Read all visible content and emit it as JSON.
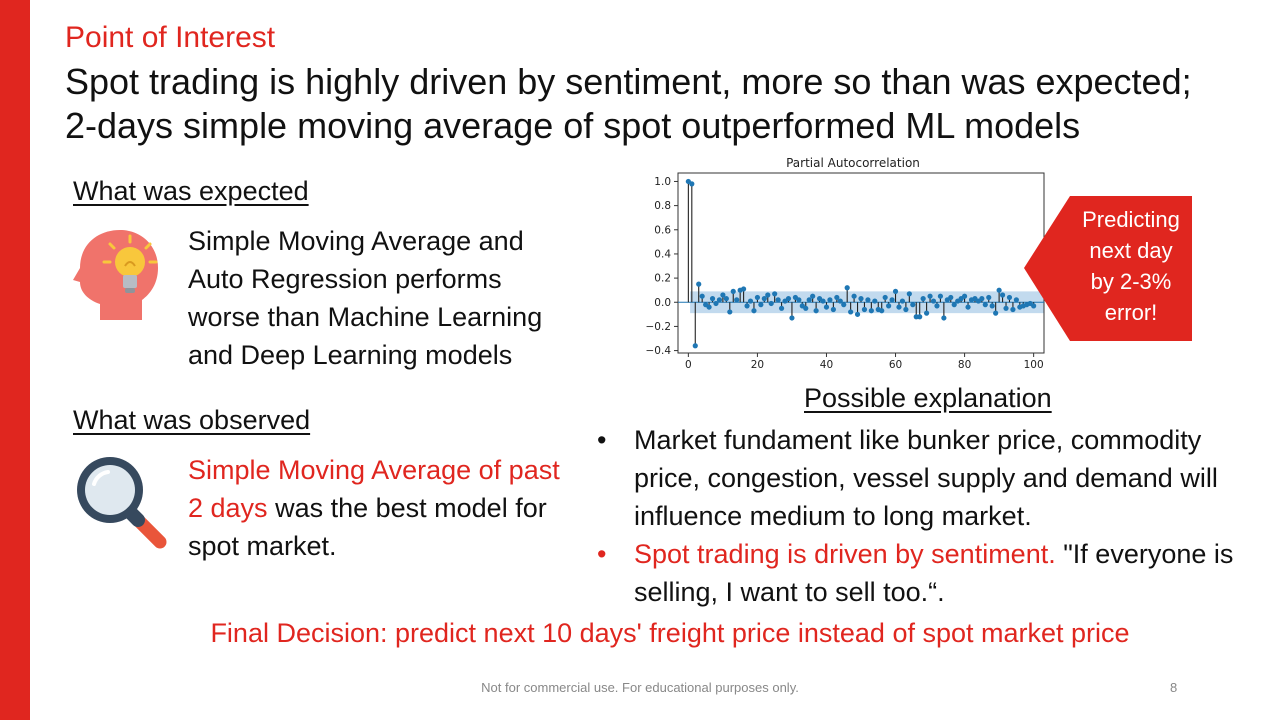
{
  "slide": {
    "kicker": "Point of Interest",
    "headline_line1": "Spot trading is highly driven by sentiment, more so than was expected;",
    "headline_line2": "2-days simple moving average of spot outperformed ML models"
  },
  "expected": {
    "heading": "What was expected",
    "lines": [
      "Simple Moving Average and",
      "Auto Regression performs",
      "worse than Machine Learning",
      "and Deep Learning models"
    ],
    "icon": "head-lightbulb-icon"
  },
  "observed": {
    "heading": "What was observed",
    "line1_red": "Simple Moving Average of past",
    "line2_red": "2 days",
    "line2_rest": " was the best model for",
    "line3": "spot market.",
    "icon": "magnifier-icon"
  },
  "callout": {
    "lines": [
      "Predicting",
      "next day",
      "by 2-3%",
      "error!"
    ],
    "color": "#e0261f"
  },
  "explanation": {
    "heading": "Possible explanation",
    "bullet1": "Market fundament like bunker price, commodity price, congestion, vessel supply and demand will influence medium to long market.",
    "bullet2_red": "Spot trading is driven by sentiment.",
    "bullet2_rest": " \"If everyone is selling, I want to sell too.“."
  },
  "final_decision": "Final Decision:  predict next 10 days' freight price instead of spot market price",
  "footer": "Not for commercial use. For educational purposes only.",
  "page_number": "8",
  "colors": {
    "accent": "#e0261f",
    "chart_series": "#1f77b4",
    "confidence_band": "#aecde8"
  },
  "chart_data": {
    "type": "scatter",
    "title": "Partial Autocorrelation",
    "xlabel": "",
    "ylabel": "",
    "xlim": [
      -3,
      103
    ],
    "ylim": [
      -0.42,
      1.07
    ],
    "xticks": [
      0,
      20,
      40,
      60,
      80,
      100
    ],
    "yticks": [
      1.0,
      0.8,
      0.6,
      0.4,
      0.2,
      0.0,
      -0.2,
      -0.4
    ],
    "xtick_labels": [
      "0",
      "20",
      "40",
      "60",
      "80",
      "100"
    ],
    "ytick_labels": [
      "1.0",
      "0.8",
      "0.6",
      "0.4",
      "0.2",
      "0.0",
      "−0.2",
      "−0.4"
    ],
    "confidence_band": [
      -0.09,
      0.09
    ],
    "grid": false,
    "series": [
      {
        "x": [
          0,
          1,
          2,
          3,
          4,
          5,
          6,
          7,
          8,
          9,
          10,
          11,
          12,
          13,
          14,
          15,
          16,
          17,
          18,
          19,
          20,
          21,
          22,
          23,
          24,
          25,
          26,
          27,
          28,
          29,
          30,
          31,
          32,
          33,
          34,
          35,
          36,
          37,
          38,
          39,
          40,
          41,
          42,
          43,
          44,
          45,
          46,
          47,
          48,
          49,
          50,
          51,
          52,
          53,
          54,
          55,
          56,
          57,
          58,
          59,
          60,
          61,
          62,
          63,
          64,
          65,
          66,
          67,
          68,
          69,
          70,
          71,
          72,
          73,
          74,
          75,
          76,
          77,
          78,
          79,
          80,
          81,
          82,
          83,
          84,
          85,
          86,
          87,
          88,
          89,
          90,
          91,
          92,
          93,
          94,
          95,
          96,
          97,
          98,
          99,
          100
        ],
        "values": [
          1.0,
          0.98,
          -0.36,
          0.15,
          0.05,
          -0.02,
          -0.04,
          0.03,
          -0.01,
          0.02,
          0.06,
          0.03,
          -0.08,
          0.09,
          0.02,
          0.1,
          0.11,
          -0.03,
          0.01,
          -0.07,
          0.04,
          -0.02,
          0.03,
          0.06,
          -0.01,
          0.07,
          0.02,
          -0.05,
          0.01,
          0.03,
          -0.13,
          0.04,
          0.02,
          -0.03,
          -0.05,
          0.02,
          0.05,
          -0.07,
          0.03,
          0.01,
          -0.04,
          0.02,
          -0.06,
          0.04,
          0.01,
          -0.02,
          0.12,
          -0.08,
          0.05,
          -0.1,
          0.03,
          -0.06,
          0.02,
          -0.07,
          0.01,
          -0.06,
          -0.07,
          0.04,
          -0.03,
          0.02,
          0.09,
          -0.04,
          0.01,
          -0.06,
          0.07,
          -0.02,
          -0.12,
          -0.12,
          0.03,
          -0.09,
          0.05,
          0.01,
          -0.03,
          0.05,
          -0.13,
          0.02,
          0.04,
          -0.02,
          0.01,
          0.03,
          0.05,
          -0.04,
          0.02,
          0.03,
          0.01,
          0.03,
          -0.02,
          0.04,
          -0.03,
          -0.09,
          0.1,
          0.06,
          -0.05,
          0.04,
          -0.06,
          0.02,
          -0.04,
          -0.03,
          -0.02,
          -0.01,
          -0.03
        ]
      }
    ]
  }
}
